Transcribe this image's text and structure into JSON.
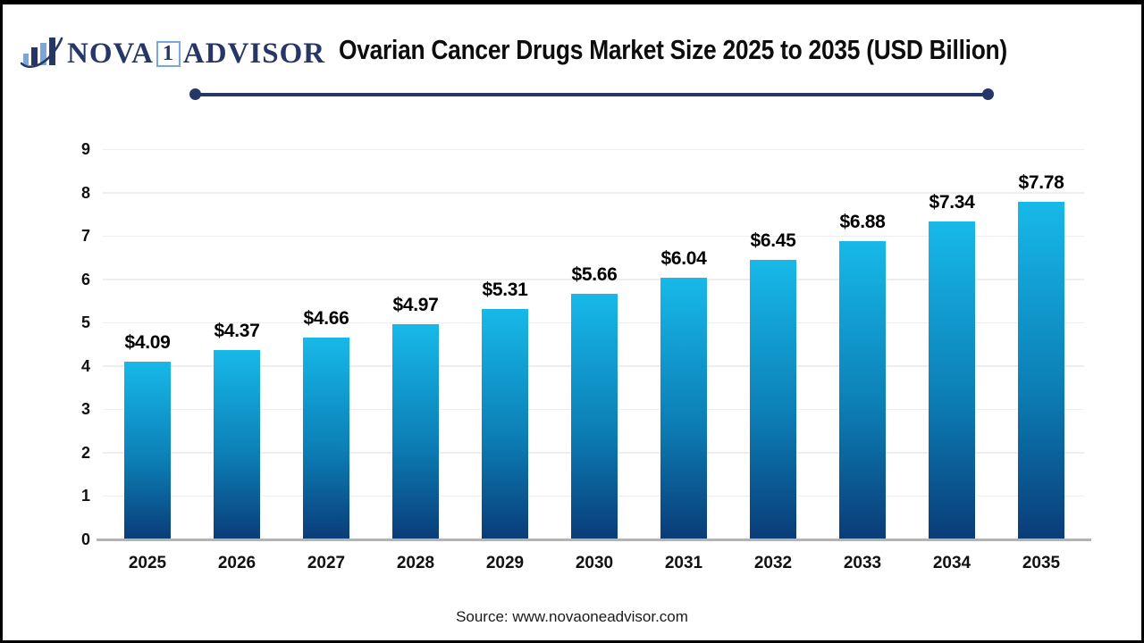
{
  "logo": {
    "part1": "NOVA",
    "badge": "1",
    "part2": "ADVISOR",
    "icon": "bar-chart-swoosh-icon"
  },
  "header": {
    "title": "Ovarian Cancer Drugs Market Size 2025 to 2035 (USD Billion)"
  },
  "footer": {
    "source": "Source: www.novaoneadvisor.com"
  },
  "colors": {
    "brand_navy": "#263767",
    "brand_lightblue": "#7aa7d8",
    "grid": "#eeeeee",
    "axis": "#b3b3b3",
    "bar_gradient_top": "#17b9e9",
    "bar_gradient_bottom": "#0a3c78"
  },
  "chart_data": {
    "type": "bar",
    "title": "Ovarian Cancer Drugs Market Size 2025 to 2035 (USD Billion)",
    "categories": [
      "2025",
      "2026",
      "2027",
      "2028",
      "2029",
      "2030",
      "2031",
      "2032",
      "2033",
      "2034",
      "2035"
    ],
    "values": [
      4.09,
      4.37,
      4.66,
      4.97,
      5.31,
      5.66,
      6.04,
      6.45,
      6.88,
      7.34,
      7.78
    ],
    "value_labels": [
      "$4.09",
      "$4.37",
      "$4.66",
      "$4.97",
      "$5.31",
      "$5.66",
      "$6.04",
      "$6.45",
      "$6.88",
      "$7.34",
      "$7.78"
    ],
    "xlabel": "",
    "ylabel": "",
    "ylim": [
      0,
      9
    ],
    "yticks": [
      0,
      1,
      2,
      3,
      4,
      5,
      6,
      7,
      8,
      9
    ],
    "grid": true,
    "legend": "none"
  }
}
